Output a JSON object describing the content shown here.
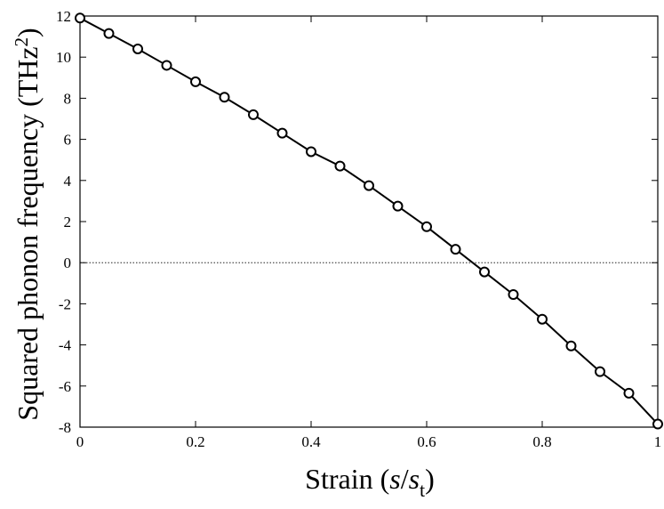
{
  "chart_data": {
    "type": "line",
    "title": "",
    "xlabel": {
      "main": "Strain (",
      "var1": "s",
      "slash": "/",
      "var2": "s",
      "sub": "t",
      "close": ")"
    },
    "ylabel": {
      "main": "Squared phonon frequency (THz",
      "sup": "2",
      "close": ")"
    },
    "xlim": [
      0,
      1
    ],
    "ylim": [
      -8,
      12
    ],
    "xticks": [
      0,
      0.2,
      0.4,
      0.6,
      0.8,
      1
    ],
    "xtick_labels": [
      "0",
      "0.2",
      "0.4",
      "0.6",
      "0.8",
      "1"
    ],
    "yticks": [
      -8,
      -6,
      -4,
      -2,
      0,
      2,
      4,
      6,
      8,
      10,
      12
    ],
    "ytick_labels": [
      "-8",
      "-6",
      "-4",
      "-2",
      "0",
      "2",
      "4",
      "6",
      "8",
      "10",
      "12"
    ],
    "reference_line": {
      "y": 0,
      "style": "dotted"
    },
    "grid": false,
    "line_color": "#000000",
    "marker": "open-circle",
    "series": [
      {
        "x": [
          0,
          0.05,
          0.1,
          0.15,
          0.2,
          0.25,
          0.3,
          0.35,
          0.4,
          0.45,
          0.5,
          0.55,
          0.6,
          0.65,
          0.7,
          0.75,
          0.8,
          0.85,
          0.9,
          0.95,
          1.0
        ],
        "y": [
          11.9,
          11.15,
          10.4,
          9.6,
          8.8,
          8.05,
          7.2,
          6.3,
          5.4,
          4.7,
          3.75,
          2.75,
          1.75,
          0.65,
          -0.45,
          -1.55,
          -2.75,
          -4.05,
          -5.3,
          -6.35,
          -7.85
        ]
      }
    ]
  }
}
